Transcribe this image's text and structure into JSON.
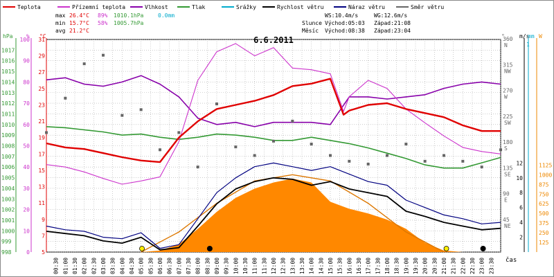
{
  "chart_data": {
    "type": "line",
    "title": "6.6.2011",
    "legend": [
      {
        "label": "Teplota",
        "color": "#e00000"
      },
      {
        "label": "Přízemní teplota",
        "color": "#cc33cc"
      },
      {
        "label": "Vlhkost",
        "color": "#8800aa"
      },
      {
        "label": "Tlak",
        "color": "#339933"
      },
      {
        "label": "Srážky",
        "color": "#00aacc"
      },
      {
        "label": "Rychlost větru",
        "color": "#000000"
      },
      {
        "label": "Náraz větru",
        "color": "#000080"
      },
      {
        "label": "Směr větru",
        "color": "#666666"
      }
    ],
    "stats": {
      "max": {
        "label": "max",
        "temp": "26.4°C",
        "hum": "89%",
        "press": "1010.1hPa",
        "rain": "0.0mm"
      },
      "min": {
        "label": "min",
        "temp": "15.7°C",
        "hum": "58%",
        "press": "1005.7hPa"
      },
      "avg": {
        "label": "avg",
        "temp": "21.2°C"
      }
    },
    "wind_info": {
      "ws": "WS:10.4m/s",
      "wg": "WG:12.6m/s"
    },
    "sun_info": {
      "label": "Slunce",
      "rise": "Východ:05:03",
      "set": "Západ:21:08"
    },
    "moon_info": {
      "label": "Měsíc",
      "rise": "Východ:08:38",
      "set": "Západ:23:04"
    },
    "axes": {
      "pressure": {
        "unit": "hPa",
        "range": [
          998,
          1018
        ],
        "ticks": [
          "1017",
          "1016",
          "1015",
          "1014",
          "1013",
          "1012",
          "1011",
          "1010",
          "1009",
          "1008",
          "1007",
          "1006",
          "1005",
          "1004",
          "1003",
          "1002",
          "1001",
          "1000",
          "999",
          "998"
        ]
      },
      "humidity": {
        "unit": "%",
        "range": [
          0,
          100
        ],
        "ticks": [
          "100",
          "90",
          "80",
          "70",
          "60",
          "50",
          "40",
          "30",
          "20",
          "10",
          "0"
        ]
      },
      "temperature": {
        "unit": "°C",
        "range": [
          5,
          31
        ],
        "ticks": [
          "31",
          "29",
          "27",
          "25",
          "23",
          "21",
          "19",
          "17",
          "15",
          "13",
          "11",
          "9",
          "7",
          "5"
        ]
      },
      "direction": {
        "unit": "°",
        "ticks": [
          {
            "deg": "360",
            "dir": "N"
          },
          {
            "deg": "315",
            "dir": "NW"
          },
          {
            "deg": "270",
            "dir": "W"
          },
          {
            "deg": "225",
            "dir": "SW"
          },
          {
            "deg": "180",
            "dir": "S"
          },
          {
            "deg": "135",
            "dir": "SE"
          },
          {
            "deg": "90",
            "dir": "E"
          },
          {
            "deg": "45",
            "dir": "NE"
          }
        ]
      },
      "wind": {
        "unit": "m/s",
        "ticks": [
          "12",
          "10",
          "8",
          "6",
          "4",
          "2"
        ]
      },
      "rain": {
        "unit": "mm",
        "top": "1"
      },
      "radiation": {
        "unit": "W",
        "ticks": [
          "1125",
          "1000",
          "875",
          "750",
          "625",
          "500",
          "375",
          "250",
          "125"
        ]
      },
      "time": {
        "label": "čas",
        "ticks": [
          "00:30",
          "01:00",
          "01:30",
          "02:00",
          "02:30",
          "03:00",
          "03:30",
          "04:00",
          "04:30",
          "05:00",
          "05:30",
          "06:00",
          "06:30",
          "07:00",
          "07:30",
          "08:00",
          "08:30",
          "09:00",
          "09:30",
          "10:00",
          "10:30",
          "11:00",
          "11:30",
          "12:00",
          "12:30",
          "13:00",
          "13:30",
          "14:00",
          "14:30",
          "15:00",
          "15:30",
          "16:00",
          "16:30",
          "17:00",
          "17:30",
          "18:00",
          "18:30",
          "19:00",
          "19:30",
          "20:00",
          "20:30",
          "21:00",
          "21:30",
          "22:00",
          "22:30",
          "23:00",
          "23:30"
        ]
      }
    },
    "series": {
      "temperature": [
        [
          0,
          18.3
        ],
        [
          1,
          17.8
        ],
        [
          2,
          17.6
        ],
        [
          3,
          17.1
        ],
        [
          4,
          16.6
        ],
        [
          5,
          16.2
        ],
        [
          6,
          16.0
        ],
        [
          7,
          19.0
        ],
        [
          8,
          21.0
        ],
        [
          9,
          22.5
        ],
        [
          10,
          23.0
        ],
        [
          11,
          23.5
        ],
        [
          12,
          24.2
        ],
        [
          13,
          25.3
        ],
        [
          14,
          25.6
        ],
        [
          15,
          26.2
        ],
        [
          15.7,
          21.8
        ],
        [
          16,
          22.3
        ],
        [
          17,
          23.0
        ],
        [
          18,
          23.2
        ],
        [
          19,
          22.5
        ],
        [
          20,
          22.0
        ],
        [
          21,
          21.5
        ],
        [
          22,
          20.5
        ],
        [
          23,
          19.8
        ],
        [
          24,
          19.8
        ]
      ],
      "ground_temperature": [
        [
          0,
          15.7
        ],
        [
          1,
          15.4
        ],
        [
          2,
          14.8
        ],
        [
          3,
          14.0
        ],
        [
          4,
          13.3
        ],
        [
          5,
          13.7
        ],
        [
          6,
          14.2
        ],
        [
          7,
          18.5
        ],
        [
          8,
          26.0
        ],
        [
          9,
          29.5
        ],
        [
          10,
          30.5
        ],
        [
          11,
          29.0
        ],
        [
          12,
          30.0
        ],
        [
          13,
          27.5
        ],
        [
          14,
          27.3
        ],
        [
          15,
          26.8
        ],
        [
          15.7,
          22.2
        ],
        [
          16,
          24.0
        ],
        [
          17,
          26.0
        ],
        [
          18,
          25.0
        ],
        [
          19,
          22.5
        ],
        [
          20,
          20.8
        ],
        [
          21,
          19.2
        ],
        [
          22,
          17.8
        ],
        [
          23,
          17.3
        ],
        [
          24,
          17.0
        ]
      ],
      "humidity": [
        [
          0,
          81
        ],
        [
          1,
          82
        ],
        [
          2,
          79
        ],
        [
          3,
          78
        ],
        [
          4,
          80
        ],
        [
          5,
          83
        ],
        [
          6,
          79
        ],
        [
          7,
          73
        ],
        [
          8,
          63
        ],
        [
          9,
          60
        ],
        [
          10,
          61
        ],
        [
          11,
          59
        ],
        [
          12,
          61
        ],
        [
          13,
          61
        ],
        [
          14,
          61
        ],
        [
          15,
          60
        ],
        [
          16,
          73
        ],
        [
          17,
          73
        ],
        [
          18,
          72
        ],
        [
          19,
          73
        ],
        [
          20,
          74
        ],
        [
          21,
          77
        ],
        [
          22,
          79
        ],
        [
          23,
          80
        ],
        [
          24,
          79
        ]
      ],
      "pressure": [
        [
          0,
          1009.8
        ],
        [
          1,
          1009.7
        ],
        [
          2,
          1009.5
        ],
        [
          3,
          1009.3
        ],
        [
          4,
          1009.0
        ],
        [
          5,
          1009.1
        ],
        [
          6,
          1008.8
        ],
        [
          7,
          1008.6
        ],
        [
          8,
          1008.8
        ],
        [
          9,
          1009.1
        ],
        [
          10,
          1009.0
        ],
        [
          11,
          1008.8
        ],
        [
          12,
          1008.5
        ],
        [
          13,
          1008.5
        ],
        [
          14,
          1008.8
        ],
        [
          15,
          1008.5
        ],
        [
          16,
          1008.2
        ],
        [
          17,
          1007.8
        ],
        [
          18,
          1007.3
        ],
        [
          19,
          1006.8
        ],
        [
          20,
          1006.2
        ],
        [
          21,
          1005.9
        ],
        [
          22,
          1005.9
        ],
        [
          23,
          1006.4
        ],
        [
          24,
          1006.9
        ]
      ],
      "wind_speed": [
        [
          0,
          2.8
        ],
        [
          1,
          2.5
        ],
        [
          2,
          2.2
        ],
        [
          3,
          1.5
        ],
        [
          4,
          1.2
        ],
        [
          5,
          2.0
        ],
        [
          6,
          0.3
        ],
        [
          7,
          0.6
        ],
        [
          8,
          3.5
        ],
        [
          9,
          6.5
        ],
        [
          10,
          8.5
        ],
        [
          11,
          9.5
        ],
        [
          12,
          10.0
        ],
        [
          13,
          9.8
        ],
        [
          14,
          9.0
        ],
        [
          15,
          9.5
        ],
        [
          16,
          8.5
        ],
        [
          17,
          8.0
        ],
        [
          18,
          7.5
        ],
        [
          19,
          5.5
        ],
        [
          20,
          4.8
        ],
        [
          21,
          4.0
        ],
        [
          22,
          3.5
        ],
        [
          23,
          3.0
        ],
        [
          24,
          3.2
        ]
      ],
      "wind_gust": [
        [
          0,
          3.5
        ],
        [
          1,
          3.0
        ],
        [
          2,
          2.8
        ],
        [
          3,
          2.0
        ],
        [
          4,
          1.8
        ],
        [
          5,
          2.6
        ],
        [
          6,
          0.5
        ],
        [
          7,
          1.0
        ],
        [
          8,
          4.5
        ],
        [
          9,
          8.0
        ],
        [
          10,
          10.0
        ],
        [
          11,
          11.5
        ],
        [
          12,
          12.0
        ],
        [
          13,
          11.5
        ],
        [
          14,
          11.0
        ],
        [
          15,
          11.5
        ],
        [
          16,
          10.5
        ],
        [
          17,
          9.5
        ],
        [
          18,
          9.0
        ],
        [
          19,
          7.0
        ],
        [
          20,
          6.0
        ],
        [
          21,
          5.0
        ],
        [
          22,
          4.5
        ],
        [
          23,
          3.8
        ],
        [
          24,
          4.0
        ]
      ],
      "solar_radiation": [
        [
          5,
          0
        ],
        [
          6,
          20
        ],
        [
          7,
          100
        ],
        [
          8,
          300
        ],
        [
          9,
          520
        ],
        [
          10,
          700
        ],
        [
          11,
          820
        ],
        [
          12,
          900
        ],
        [
          13,
          950
        ],
        [
          14,
          900
        ],
        [
          15,
          650
        ],
        [
          16,
          560
        ],
        [
          17,
          500
        ],
        [
          18,
          420
        ],
        [
          19,
          300
        ],
        [
          20,
          120
        ],
        [
          21,
          20
        ],
        [
          22,
          0
        ]
      ],
      "theoretical_radiation": [
        [
          5,
          0
        ],
        [
          7,
          260
        ],
        [
          9,
          630
        ],
        [
          11,
          920
        ],
        [
          13,
          1000
        ],
        [
          15,
          920
        ],
        [
          17,
          630
        ],
        [
          19,
          260
        ],
        [
          21,
          0
        ]
      ],
      "wind_direction": [
        [
          0,
          200
        ],
        [
          1,
          260
        ],
        [
          2,
          320
        ],
        [
          3,
          335
        ],
        [
          4,
          230
        ],
        [
          5,
          240
        ],
        [
          6,
          170
        ],
        [
          7,
          200
        ],
        [
          8,
          140
        ],
        [
          9,
          250
        ],
        [
          10,
          175
        ],
        [
          11,
          160
        ],
        [
          12,
          185
        ],
        [
          13,
          220
        ],
        [
          14,
          180
        ],
        [
          15,
          160
        ],
        [
          16,
          150
        ],
        [
          17,
          145
        ],
        [
          18,
          160
        ],
        [
          19,
          180
        ],
        [
          20,
          150
        ],
        [
          21,
          160
        ],
        [
          22,
          150
        ],
        [
          23,
          140
        ],
        [
          24,
          170
        ]
      ]
    }
  }
}
